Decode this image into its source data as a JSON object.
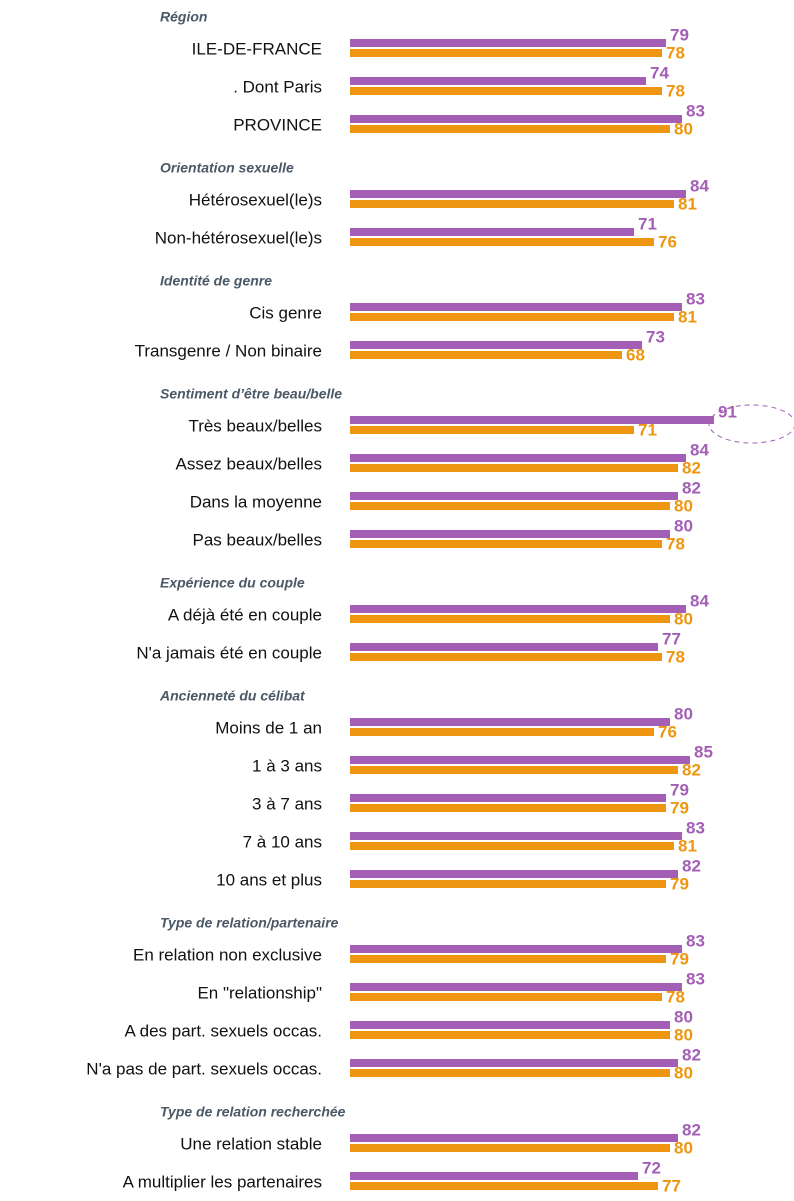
{
  "chart_data": {
    "type": "bar",
    "orientation": "horizontal",
    "xlim": [
      0,
      100
    ],
    "series": [
      {
        "color": "#a35fb5"
      },
      {
        "color": "#ee9611"
      }
    ],
    "groups": [
      {
        "title": "Région",
        "categories": [
          "ILE-DE-FRANCE",
          ". Dont Paris",
          "PROVINCE"
        ],
        "values": [
          [
            79,
            74,
            83
          ],
          [
            78,
            78,
            80
          ]
        ]
      },
      {
        "title": "Orientation sexuelle",
        "categories": [
          "Hétérosexuel(le)s",
          "Non-hétérosexuel(le)s"
        ],
        "values": [
          [
            84,
            71
          ],
          [
            81,
            76
          ]
        ]
      },
      {
        "title": "Identité de genre",
        "categories": [
          "Cis genre",
          "Transgenre / Non binaire"
        ],
        "values": [
          [
            83,
            73
          ],
          [
            81,
            68
          ]
        ]
      },
      {
        "title": "Sentiment d’être beau/belle",
        "categories": [
          "Très beaux/belles",
          "Assez beaux/belles",
          "Dans la moyenne",
          "Pas beaux/belles"
        ],
        "values": [
          [
            91,
            84,
            82,
            80
          ],
          [
            71,
            82,
            80,
            78
          ]
        ]
      },
      {
        "title": "Expérience du couple",
        "categories": [
          "A déjà été en couple",
          "N'a jamais été en couple"
        ],
        "values": [
          [
            84,
            77
          ],
          [
            80,
            78
          ]
        ]
      },
      {
        "title": "Ancienneté du célibat",
        "categories": [
          "Moins de 1 an",
          "1 à 3 ans",
          "3 à 7 ans",
          "7 à 10 ans",
          "10 ans et plus"
        ],
        "values": [
          [
            80,
            85,
            79,
            83,
            82
          ],
          [
            76,
            82,
            79,
            81,
            79
          ]
        ]
      },
      {
        "title": "Type de relation/partenaire",
        "categories": [
          "En relation non exclusive",
          "En \"relationship\"",
          "A des part. sexuels occas.",
          "N'a pas de part. sexuels occas."
        ],
        "values": [
          [
            83,
            83,
            80,
            82
          ],
          [
            79,
            78,
            80,
            80
          ]
        ]
      },
      {
        "title": "Type de relation recherchée",
        "categories": [
          "Une relation stable",
          "A multiplier les partenaires"
        ],
        "values": [
          [
            82,
            72
          ],
          [
            80,
            77
          ]
        ]
      }
    ]
  }
}
